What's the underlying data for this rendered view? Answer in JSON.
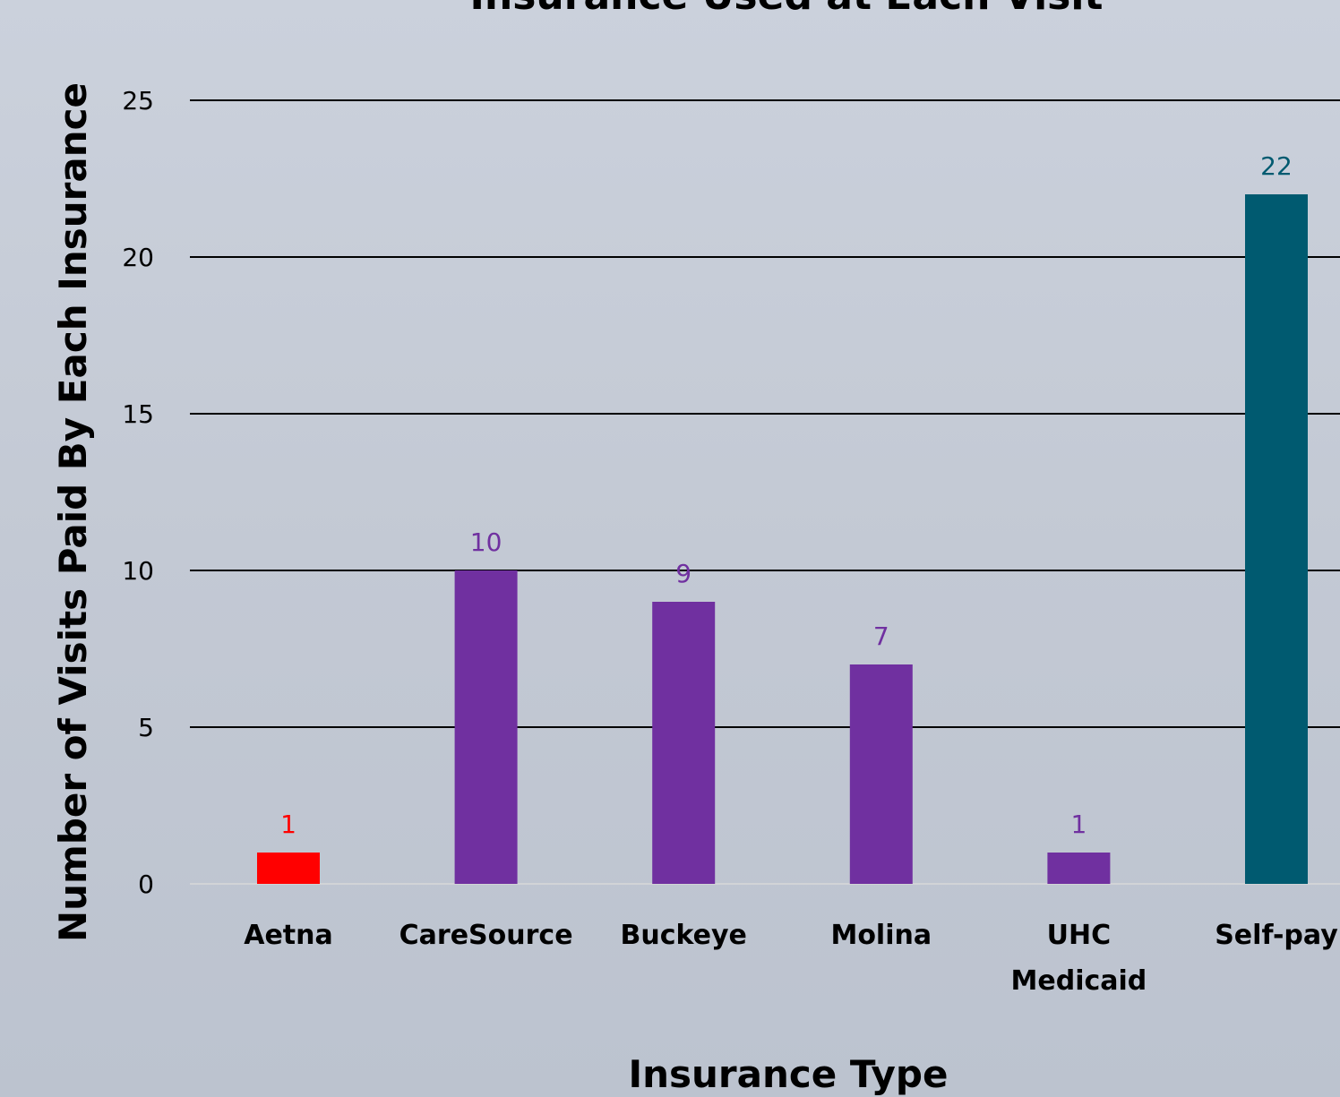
{
  "chart_data": {
    "type": "bar",
    "title": "Insurance Used at Each Visit",
    "xlabel": "Insurance Type",
    "ylabel": "Number of Visits Paid By Each Insurance",
    "categories": [
      "Aetna",
      "CareSource",
      "Buckeye",
      "Molina",
      "UHC Medicaid",
      "Self-pay"
    ],
    "category_lines": [
      [
        "Aetna"
      ],
      [
        "CareSource"
      ],
      [
        "Buckeye"
      ],
      [
        "Molina"
      ],
      [
        "UHC",
        "Medicaid"
      ],
      [
        "Self-pay"
      ]
    ],
    "values": [
      1,
      10,
      9,
      7,
      1,
      22
    ],
    "bar_colors": [
      "#ff0000",
      "#7030a0",
      "#7030a0",
      "#7030a0",
      "#7030a0",
      "#005a70"
    ],
    "label_colors": [
      "#ff0000",
      "#7030a0",
      "#7030a0",
      "#7030a0",
      "#7030a0",
      "#005a70"
    ],
    "ylim": [
      0,
      25
    ],
    "yticks": [
      "0",
      "5",
      "10",
      "15",
      "20",
      "25"
    ],
    "grid": true,
    "legend": "none"
  }
}
